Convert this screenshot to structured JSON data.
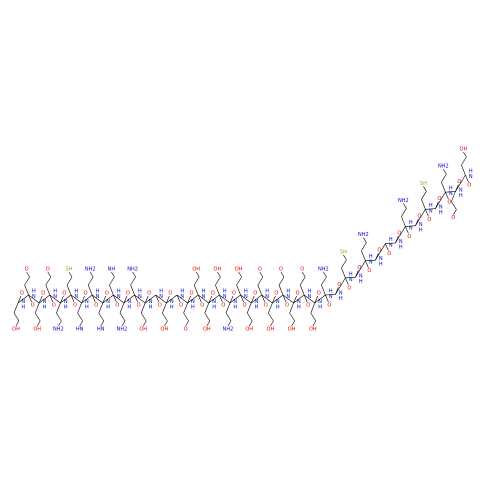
{
  "molecule": {
    "residues": [
      {
        "o": "O",
        "n": "N",
        "h": "H",
        "side": "OH"
      },
      {
        "o": "O",
        "n": "N",
        "h": "H",
        "side": "O"
      },
      {
        "o": "O",
        "n": "N",
        "h": "H",
        "side": "OH"
      },
      {
        "o": "O",
        "n": "N",
        "h": "H",
        "side": "O"
      },
      {
        "o": "O",
        "n": "N",
        "h": "H",
        "side": "NH2"
      },
      {
        "o": "O",
        "n": "N",
        "h": "H",
        "side": "SH"
      },
      {
        "o": "O",
        "n": "N",
        "h": "H",
        "side": "HN"
      },
      {
        "o": "O",
        "n": "N",
        "h": "H",
        "side": "NH2"
      },
      {
        "o": "O",
        "n": "N",
        "h": "H",
        "side": "HN"
      },
      {
        "o": "O",
        "n": "N",
        "h": "H",
        "side": "NH"
      },
      {
        "o": "O",
        "n": "N",
        "h": "H",
        "side": "NH2"
      },
      {
        "o": "O",
        "n": "N",
        "h": "H",
        "side": "NH2"
      },
      {
        "o": "O",
        "n": "N",
        "h": "H",
        "side": "OH"
      },
      {
        "o": "O",
        "n": "N",
        "h": "H"
      },
      {
        "o": "O",
        "n": "N",
        "h": "H",
        "side": "OH"
      },
      {
        "o": "O",
        "n": "N",
        "h": "H"
      },
      {
        "o": "O",
        "n": "N",
        "h": "H",
        "side": "O"
      },
      {
        "o": "O",
        "n": "N",
        "h": "H",
        "side": "OH"
      },
      {
        "o": "O",
        "n": "N",
        "h": "H",
        "side": "OH"
      },
      {
        "o": "O",
        "n": "N",
        "h": "H",
        "side": "OH"
      },
      {
        "o": "O",
        "n": "N",
        "h": "H",
        "side": "NH2"
      },
      {
        "o": "O",
        "n": "N",
        "h": "H",
        "side": "OH"
      },
      {
        "o": "O",
        "n": "N",
        "h": "H",
        "side": "OH"
      },
      {
        "o": "O",
        "n": "N",
        "h": "H",
        "side": "O"
      },
      {
        "o": "O",
        "n": "N",
        "h": "H",
        "side": "OH"
      },
      {
        "o": "O",
        "n": "N",
        "h": "H",
        "side": "O"
      },
      {
        "o": "O",
        "n": "N",
        "h": "H",
        "side": "OH"
      },
      {
        "o": "O",
        "n": "N",
        "h": "H",
        "side": "O"
      },
      {
        "o": "O",
        "n": "N",
        "h": "H",
        "side": "OH"
      },
      {
        "o": "O",
        "n": "N",
        "h": "H",
        "side": "NH2"
      },
      {
        "o": "O",
        "n": "N",
        "h": "H"
      },
      {
        "o": "O",
        "n": "N",
        "h": "H",
        "side": "SH"
      },
      {
        "o": "O",
        "n": "N",
        "h": "H"
      },
      {
        "o": "O",
        "n": "N",
        "h": "H",
        "side": "NH2"
      },
      {
        "o": "O",
        "n": "N",
        "h": "H"
      },
      {
        "o": "O",
        "n": "N",
        "h": "H"
      },
      {
        "o": "O",
        "n": "N",
        "h": "H"
      },
      {
        "o": "O",
        "n": "N",
        "h": "H",
        "side": "NH2"
      },
      {
        "o": "O",
        "n": "N",
        "h": "H"
      },
      {
        "o": "O",
        "n": "N",
        "h": "H",
        "side": "SH"
      },
      {
        "o": "O",
        "n": "N",
        "h": "H"
      },
      {
        "o": "O",
        "n": "N",
        "h": "H",
        "side": "NH2"
      },
      {
        "o": "O",
        "n": "N",
        "h": "H",
        "side": "O"
      },
      {
        "o": "O",
        "n": "N",
        "h": "H",
        "side": "OH"
      }
    ]
  }
}
